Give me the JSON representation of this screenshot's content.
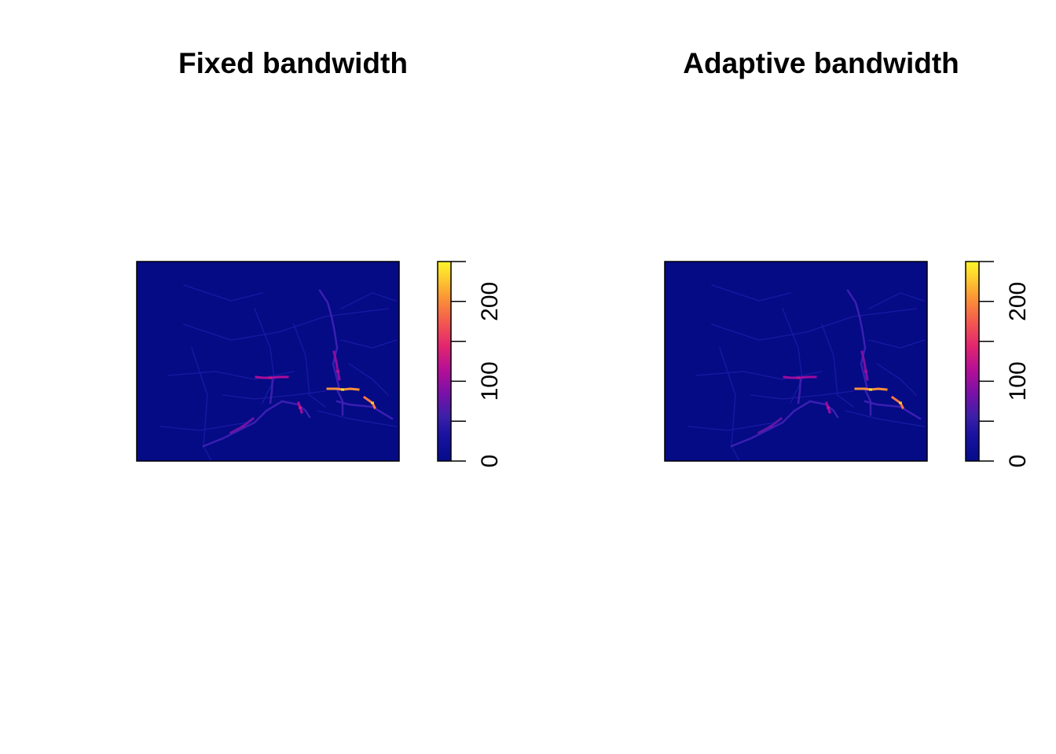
{
  "chart_data": [
    {
      "type": "heatmap",
      "title": "Fixed bandwidth",
      "axes_shown": false,
      "colorbar": {
        "range": [
          0,
          250
        ],
        "ticks": [
          0,
          50,
          100,
          150,
          200,
          250
        ],
        "tick_labels": [
          "0",
          "100",
          "200"
        ],
        "palette": "plasma-like (dark blue → purple → magenta → orange → yellow)"
      },
      "hotspots": [
        {
          "label": "right horizontal segment",
          "max_value": 250
        },
        {
          "label": "far-right spot",
          "max_value": 230
        },
        {
          "label": "left horizontal segment",
          "max_value": 120
        },
        {
          "label": "vertical ridge",
          "max_value": 100
        },
        {
          "label": "lower-left diagonal",
          "max_value": 80
        }
      ]
    },
    {
      "type": "heatmap",
      "title": "Adaptive bandwidth",
      "axes_shown": false,
      "colorbar": {
        "range": [
          0,
          250
        ],
        "ticks": [
          0,
          50,
          100,
          150,
          200,
          250
        ],
        "tick_labels": [
          "0",
          "100",
          "200"
        ],
        "palette": "plasma-like (dark blue → purple → magenta → orange → yellow)"
      },
      "hotspots": [
        {
          "label": "right horizontal segment",
          "max_value": 250
        },
        {
          "label": "far-right spot",
          "max_value": 230
        },
        {
          "label": "left horizontal segment",
          "max_value": 110
        },
        {
          "label": "vertical ridge",
          "max_value": 90
        },
        {
          "label": "lower-left diagonal",
          "max_value": 70
        }
      ]
    }
  ],
  "colors": {
    "background_low": "#050a85",
    "stops": [
      "#040b8b",
      "#3a23a0",
      "#8a14a8",
      "#d11a7a",
      "#f4505a",
      "#fb9b34",
      "#fff42a"
    ]
  }
}
